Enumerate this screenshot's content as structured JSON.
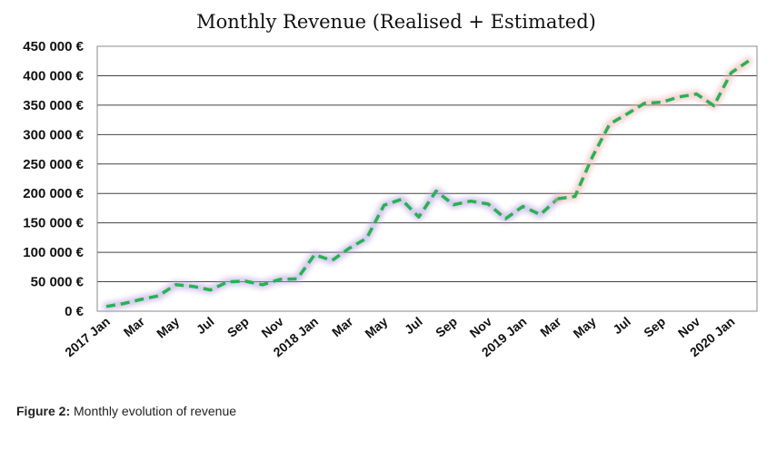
{
  "chart_data": {
    "type": "line",
    "title": "Monthly Revenue (Realised + Estimated)",
    "ylim": [
      0,
      450000
    ],
    "ytick_labels": [
      "0 €",
      "50 000 €",
      "100 000 €",
      "150 000 €",
      "200 000 €",
      "250 000 €",
      "300 000 €",
      "350 000 €",
      "400 000 €",
      "450 000 €"
    ],
    "x_tick_labels": [
      "2017 Jan",
      "Mar",
      "May",
      "Jul",
      "Sep",
      "Nov",
      "2018 Jan",
      "Mar",
      "May",
      "Jul",
      "Sep",
      "Nov",
      "2019 Jan",
      "Mar",
      "May",
      "Jul",
      "Sep",
      "Nov",
      "2020 Jan"
    ],
    "grid": true,
    "legend": "none",
    "x": [
      "2017-01",
      "2017-02",
      "2017-03",
      "2017-04",
      "2017-05",
      "2017-06",
      "2017-07",
      "2017-08",
      "2017-09",
      "2017-10",
      "2017-11",
      "2017-12",
      "2018-01",
      "2018-02",
      "2018-03",
      "2018-04",
      "2018-05",
      "2018-06",
      "2018-07",
      "2018-08",
      "2018-09",
      "2018-10",
      "2018-11",
      "2018-12",
      "2019-01",
      "2019-02",
      "2019-03",
      "2019-04",
      "2019-05",
      "2019-06",
      "2019-07",
      "2019-08",
      "2019-09",
      "2019-10",
      "2019-11",
      "2019-12",
      "2020-01",
      "2020-02"
    ],
    "series": [
      {
        "style": "solid",
        "color": "#22b550",
        "values": [
          8000,
          13000,
          20000,
          26000,
          45000,
          42000,
          36000,
          50000,
          51000,
          45000,
          54000,
          55000,
          96000,
          86000,
          107000,
          124000,
          180000,
          190000,
          160000,
          204000,
          181000,
          187000,
          182000,
          157000,
          178000,
          164000,
          191000,
          null,
          null,
          null,
          null,
          null,
          null,
          null,
          null,
          null,
          null,
          null
        ]
      },
      {
        "style": "dashed",
        "color": "#22b550",
        "values": [
          null,
          null,
          null,
          null,
          null,
          null,
          null,
          null,
          null,
          null,
          null,
          null,
          null,
          null,
          null,
          null,
          null,
          null,
          null,
          null,
          null,
          null,
          null,
          null,
          null,
          null,
          191000,
          195000,
          262000,
          318000,
          335000,
          353000,
          355000,
          364000,
          369000,
          349000,
          405000,
          425000
        ]
      }
    ]
  },
  "caption": {
    "label": "Figure 2:",
    "text": " Monthly evolution of revenue"
  }
}
